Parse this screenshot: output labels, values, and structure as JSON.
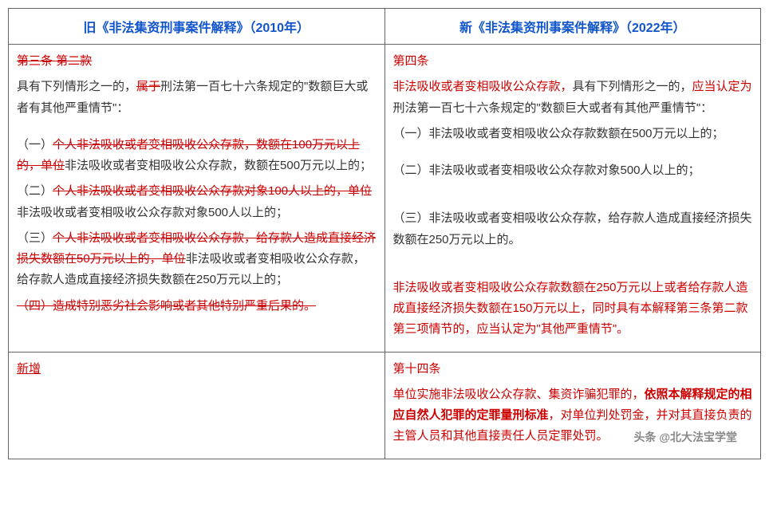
{
  "header": {
    "old_title": "旧《非法集资刑事案件解释》（2010年）",
    "new_title": "新《非法集资刑事案件解释》（2022年）"
  },
  "row1": {
    "old": {
      "article_label": "第三条  第二款",
      "intro_pre": "具有下列情形之一的，",
      "intro_strike": "属于",
      "intro_post": "刑法第一百七十六条规定的\"数额巨大或者有其他严重情节\"：",
      "item1_strike": "个人非法吸收或者变相吸收公众存款，数额在100万元以上的，单位",
      "item1_post": "非法吸收或者变相吸收公众存款，数额在500万元以上的；",
      "item2_strike": "个人非法吸收或者变相吸收公众存款对象100人以上的，单位",
      "item2_post": "非法吸收或者变相吸收公众存款对象500人以上的；",
      "item3_strike1": "个人非法吸收或者变相吸收公众存款，给存款人造成直接经济损失数额在50万元以上的，单位",
      "item3_post": "非法吸收或者变相吸收公众存款，给存款人造成直接经济损失数额在250万元以上的；",
      "item4_strike": "（四）造成特别恶劣社会影响或者其他特别严重后果的。",
      "num1": "（一）",
      "num2": "（二）",
      "num3": "（三）"
    },
    "new": {
      "article_label": "第四条",
      "intro_red1": "非法吸收或者变相吸收公众存款，",
      "intro_black": "具有下列情形之一的，",
      "intro_red2": "应当认定为",
      "intro_post": "刑法第一百七十六条规定的\"数额巨大或者有其他严重情节\"：",
      "item1": "（一）非法吸收或者变相吸收公众存款数额在500万元以上的；",
      "item2": "（二）非法吸收或者变相吸收公众存款对象500人以上的；",
      "item3": "（三）非法吸收或者变相吸收公众存款，给存款人造成直接经济损失数额在250万元以上的。",
      "extra": "非法吸收或者变相吸收公众存款数额在250万元以上或者给存款人造成直接经济损失数额在150万元以上，同时具有本解释第三条第二款第三项情节的，应当认定为\"其他严重情节\"。"
    }
  },
  "row2": {
    "old": {
      "label": "新增"
    },
    "new": {
      "article_label": "第十四条",
      "text_pre": "单位实施非法吸收公众存款、集资诈骗犯罪的，",
      "text_bold": "依照本解释规定的相应自然人犯罪的定罪量刑标准",
      "text_post": "，对单位判处罚金，并对其直接负责的主管人员和其他直接责任人员定罪处罚。"
    }
  },
  "watermark": "头条 @北大法宝学堂",
  "styles": {
    "header_color": "#1155cc",
    "text_color": "#333333",
    "red_color": "#cc0000",
    "border_color": "#666666",
    "background": "#ffffff"
  }
}
